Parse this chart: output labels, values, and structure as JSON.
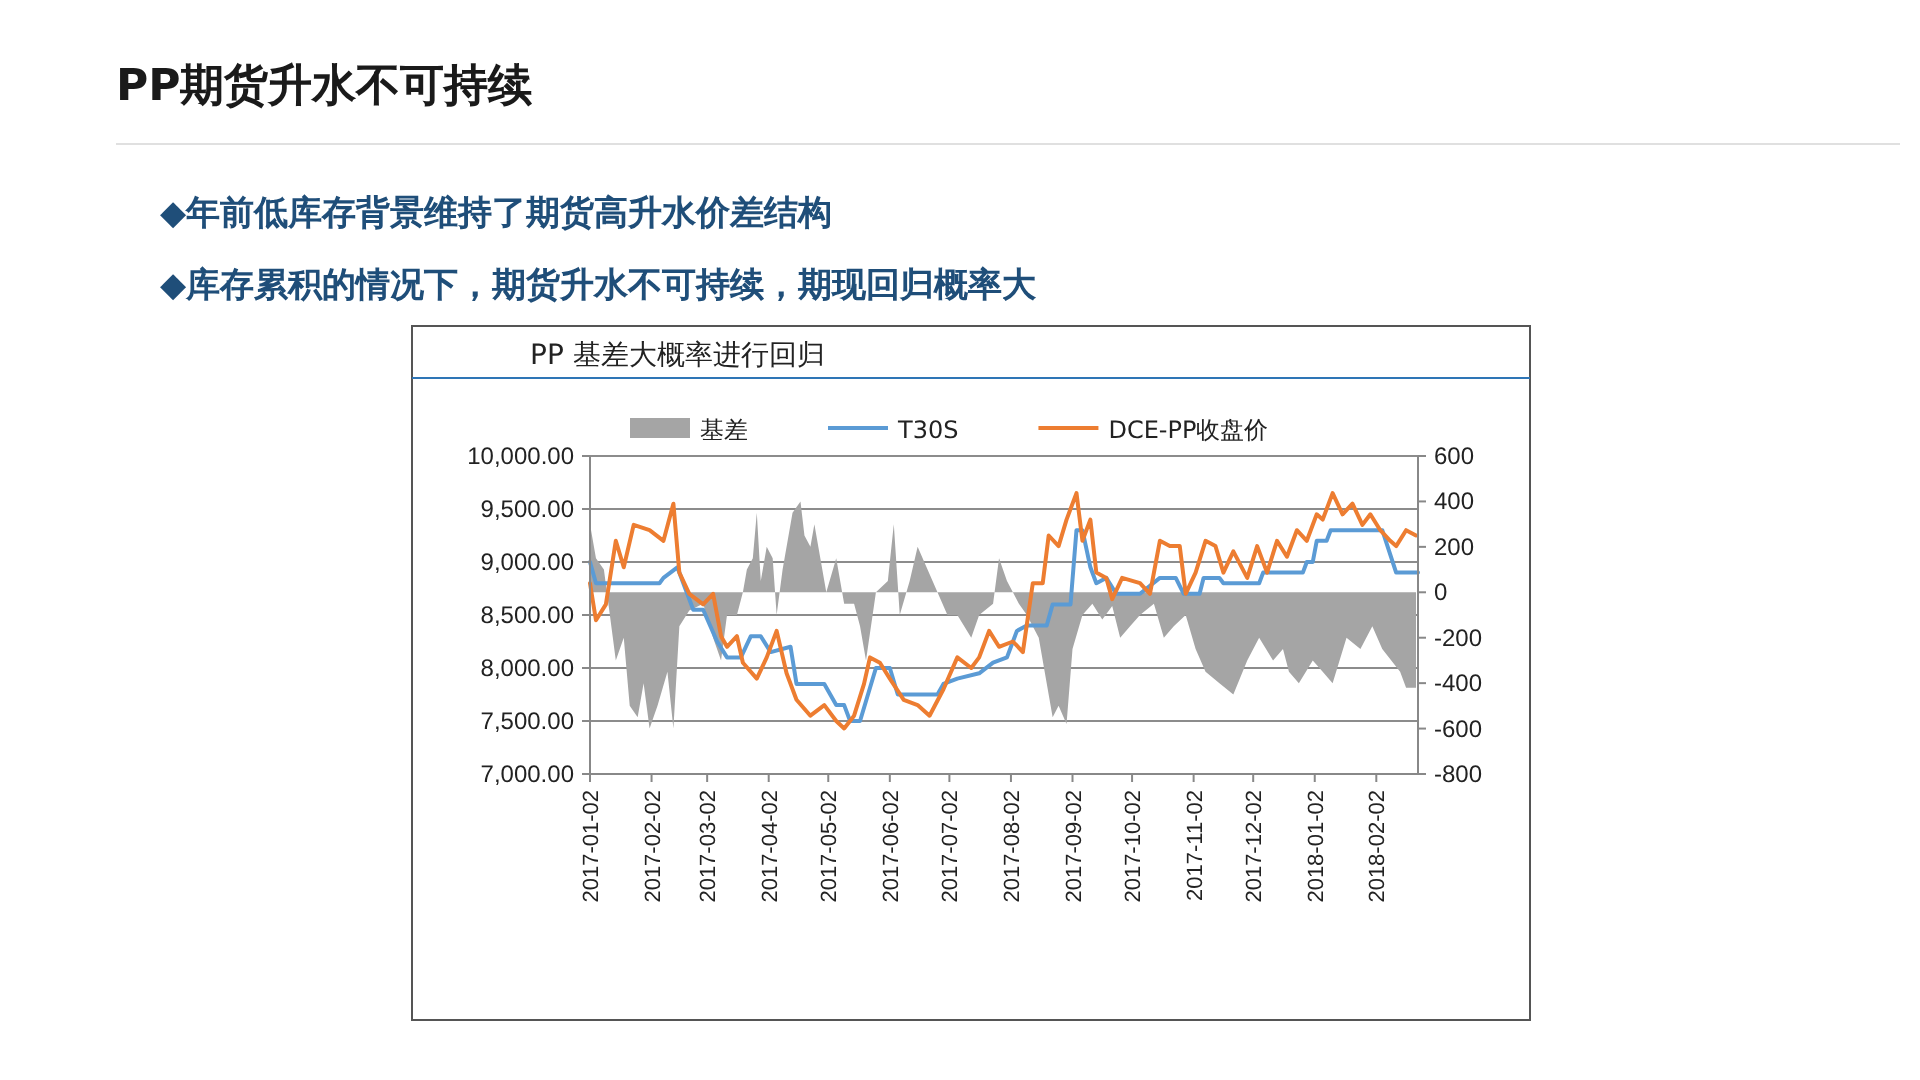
{
  "chart_data": {
    "type": "line",
    "title": "PP期货升水不可持续",
    "subtitle": "PP 基差大概率进行回归",
    "annotations": [
      "◆年前低库存背景维持了期货高升水价差结构",
      "◆库存累积的情况下，期货升水不可持续，期现回归概率大"
    ],
    "legend": "top",
    "grid": "y",
    "xlim": [
      "2017-01-02",
      "2018-02-23"
    ],
    "xticks": [
      "2017-01-02",
      "2017-02-02",
      "2017-03-02",
      "2017-04-02",
      "2017-05-02",
      "2017-06-02",
      "2017-07-02",
      "2017-08-02",
      "2017-09-02",
      "2017-10-02",
      "2017-11-02",
      "2017-12-02",
      "2018-01-02",
      "2018-02-02"
    ],
    "ylim": [
      7000,
      10000
    ],
    "yticks": [
      {
        "value": 7000,
        "label": "7,000.00"
      },
      {
        "value": 7500,
        "label": "7,500.00"
      },
      {
        "value": 8000,
        "label": "8,000.00"
      },
      {
        "value": 8500,
        "label": "8,500.00"
      },
      {
        "value": 9000,
        "label": "9,000.00"
      },
      {
        "value": 9500,
        "label": "9,500.00"
      },
      {
        "value": 10000,
        "label": "10,000.00"
      }
    ],
    "y2lim": [
      -800,
      600
    ],
    "y2ticks": [
      -800,
      -600,
      -400,
      -200,
      0,
      200,
      400,
      600
    ],
    "series": [
      {
        "name": "基差",
        "type": "area",
        "axis": "y2",
        "color": "#a5a5a5",
        "x": [
          "2017-01-02",
          "2017-01-05",
          "2017-01-09",
          "2017-01-12",
          "2017-01-15",
          "2017-01-19",
          "2017-01-22",
          "2017-01-26",
          "2017-01-29",
          "2017-02-01",
          "2017-02-05",
          "2017-02-10",
          "2017-02-13",
          "2017-02-16",
          "2017-02-21",
          "2017-02-28",
          "2017-03-05",
          "2017-03-09",
          "2017-03-12",
          "2017-03-17",
          "2017-03-20",
          "2017-03-22",
          "2017-03-25",
          "2017-03-27",
          "2017-03-29",
          "2017-04-01",
          "2017-04-04",
          "2017-04-06",
          "2017-04-09",
          "2017-04-14",
          "2017-04-18",
          "2017-04-20",
          "2017-04-23",
          "2017-04-25",
          "2017-04-28",
          "2017-05-01",
          "2017-05-06",
          "2017-05-10",
          "2017-05-15",
          "2017-05-18",
          "2017-05-21",
          "2017-05-26",
          "2017-06-01",
          "2017-06-04",
          "2017-06-07",
          "2017-06-12",
          "2017-06-16",
          "2017-06-21",
          "2017-06-26",
          "2017-07-01",
          "2017-07-06",
          "2017-07-13",
          "2017-07-17",
          "2017-07-24",
          "2017-07-27",
          "2017-07-31",
          "2017-08-06",
          "2017-08-10",
          "2017-08-16",
          "2017-08-20",
          "2017-08-23",
          "2017-08-26",
          "2017-08-30",
          "2017-09-02",
          "2017-09-07",
          "2017-09-12",
          "2017-09-17",
          "2017-09-22",
          "2017-09-26",
          "2017-10-01",
          "2017-10-06",
          "2017-10-13",
          "2017-10-18",
          "2017-10-23",
          "2017-10-29",
          "2017-11-03",
          "2017-11-08",
          "2017-11-15",
          "2017-11-22",
          "2017-11-29",
          "2017-12-05",
          "2017-12-12",
          "2017-12-17",
          "2017-12-20",
          "2017-12-25",
          "2018-01-01",
          "2018-01-06",
          "2018-01-11",
          "2018-01-18",
          "2018-01-25",
          "2018-01-31",
          "2018-02-05",
          "2018-02-14",
          "2018-02-17",
          "2018-02-22"
        ],
        "values": [
          300,
          150,
          100,
          -100,
          -300,
          -200,
          -500,
          -550,
          -400,
          -600,
          -500,
          -350,
          -600,
          -150,
          -80,
          -50,
          -200,
          -300,
          -100,
          -100,
          0,
          100,
          150,
          350,
          50,
          200,
          150,
          -100,
          100,
          350,
          400,
          250,
          200,
          300,
          150,
          0,
          150,
          -50,
          -50,
          -150,
          -300,
          0,
          50,
          300,
          -100,
          50,
          200,
          100,
          0,
          -100,
          -100,
          -200,
          -100,
          -50,
          150,
          50,
          -50,
          -100,
          -200,
          -400,
          -550,
          -500,
          -580,
          -250,
          -100,
          -50,
          -120,
          -60,
          -200,
          -150,
          -100,
          -50,
          -200,
          -150,
          -100,
          -250,
          -350,
          -400,
          -450,
          -300,
          -200,
          -300,
          -250,
          -350,
          -400,
          -300,
          -350,
          -400,
          -200,
          -250,
          -150,
          -250,
          -350,
          -420,
          -420
        ]
      },
      {
        "name": "T30S",
        "type": "line",
        "color": "#5b9bd5",
        "x": [
          "2017-01-02",
          "2017-01-05",
          "2017-01-26",
          "2017-02-06",
          "2017-02-08",
          "2017-02-15",
          "2017-02-18",
          "2017-02-23",
          "2017-02-28",
          "2017-03-07",
          "2017-03-12",
          "2017-03-19",
          "2017-03-24",
          "2017-03-29",
          "2017-04-03",
          "2017-04-13",
          "2017-04-16",
          "2017-04-30",
          "2017-05-06",
          "2017-05-10",
          "2017-05-13",
          "2017-05-18",
          "2017-05-26",
          "2017-06-02",
          "2017-06-06",
          "2017-06-26",
          "2017-06-29",
          "2017-07-06",
          "2017-07-17",
          "2017-07-24",
          "2017-07-31",
          "2017-08-05",
          "2017-08-10",
          "2017-08-20",
          "2017-08-23",
          "2017-09-01",
          "2017-09-04",
          "2017-09-07",
          "2017-09-11",
          "2017-09-14",
          "2017-09-19",
          "2017-09-24",
          "2017-10-06",
          "2017-10-16",
          "2017-10-24",
          "2017-10-28",
          "2017-11-05",
          "2017-11-07",
          "2017-11-15",
          "2017-11-17",
          "2017-12-05",
          "2017-12-07",
          "2017-12-27",
          "2017-12-29",
          "2018-01-01",
          "2018-01-03",
          "2018-01-08",
          "2018-01-10",
          "2018-02-05",
          "2018-02-12",
          "2018-02-23"
        ],
        "values": [
          9000,
          8800,
          8800,
          8800,
          8850,
          8950,
          8800,
          8550,
          8550,
          8250,
          8100,
          8100,
          8300,
          8300,
          8150,
          8200,
          7850,
          7850,
          7650,
          7650,
          7500,
          7500,
          8000,
          8000,
          7750,
          7750,
          7850,
          7900,
          7950,
          8050,
          8100,
          8350,
          8400,
          8400,
          8600,
          8600,
          9300,
          9300,
          8950,
          8800,
          8850,
          8700,
          8700,
          8850,
          8850,
          8700,
          8700,
          8850,
          8850,
          8800,
          8800,
          8900,
          8900,
          9000,
          9000,
          9200,
          9200,
          9300,
          9300,
          8900,
          8900
        ]
      },
      {
        "name": "DCE-PP收盘价",
        "type": "line",
        "color": "#ed7d31",
        "x": [
          "2017-01-02",
          "2017-01-05",
          "2017-01-10",
          "2017-01-15",
          "2017-01-19",
          "2017-01-24",
          "2017-02-01",
          "2017-02-08",
          "2017-02-13",
          "2017-02-16",
          "2017-02-21",
          "2017-02-28",
          "2017-03-05",
          "2017-03-09",
          "2017-03-12",
          "2017-03-17",
          "2017-03-20",
          "2017-03-27",
          "2017-04-01",
          "2017-04-06",
          "2017-04-11",
          "2017-04-16",
          "2017-04-23",
          "2017-04-30",
          "2017-05-06",
          "2017-05-10",
          "2017-05-15",
          "2017-05-20",
          "2017-05-23",
          "2017-05-28",
          "2017-06-02",
          "2017-06-09",
          "2017-06-16",
          "2017-06-22",
          "2017-06-29",
          "2017-07-06",
          "2017-07-13",
          "2017-07-17",
          "2017-07-22",
          "2017-07-27",
          "2017-08-03",
          "2017-08-08",
          "2017-08-13",
          "2017-08-18",
          "2017-08-21",
          "2017-08-26",
          "2017-08-30",
          "2017-09-04",
          "2017-09-07",
          "2017-09-11",
          "2017-09-14",
          "2017-09-19",
          "2017-09-22",
          "2017-09-27",
          "2017-10-06",
          "2017-10-11",
          "2017-10-16",
          "2017-10-21",
          "2017-10-26",
          "2017-10-29",
          "2017-11-03",
          "2017-11-08",
          "2017-11-13",
          "2017-11-17",
          "2017-11-22",
          "2017-11-29",
          "2017-12-04",
          "2017-12-09",
          "2017-12-14",
          "2017-12-19",
          "2017-12-24",
          "2017-12-29",
          "2018-01-03",
          "2018-01-06",
          "2018-01-11",
          "2018-01-16",
          "2018-01-21",
          "2018-01-26",
          "2018-01-30",
          "2018-02-04",
          "2018-02-09",
          "2018-02-12",
          "2018-02-17",
          "2018-02-22"
        ],
        "values": [
          8800,
          8450,
          8600,
          9200,
          8950,
          9350,
          9300,
          9200,
          9550,
          8900,
          8700,
          8600,
          8700,
          8300,
          8200,
          8300,
          8050,
          7900,
          8100,
          8350,
          7950,
          7700,
          7550,
          7650,
          7500,
          7430,
          7550,
          7850,
          8100,
          8050,
          7900,
          7700,
          7650,
          7550,
          7800,
          8100,
          8000,
          8100,
          8350,
          8200,
          8250,
          8150,
          8800,
          8800,
          9250,
          9150,
          9400,
          9650,
          9200,
          9400,
          8900,
          8850,
          8650,
          8850,
          8800,
          8700,
          9200,
          9150,
          9150,
          8700,
          8900,
          9200,
          9150,
          8900,
          9100,
          8850,
          9150,
          8900,
          9200,
          9050,
          9300,
          9200,
          9450,
          9400,
          9650,
          9450,
          9550,
          9350,
          9450,
          9300,
          9200,
          9150,
          9300,
          9250
        ]
      }
    ]
  }
}
